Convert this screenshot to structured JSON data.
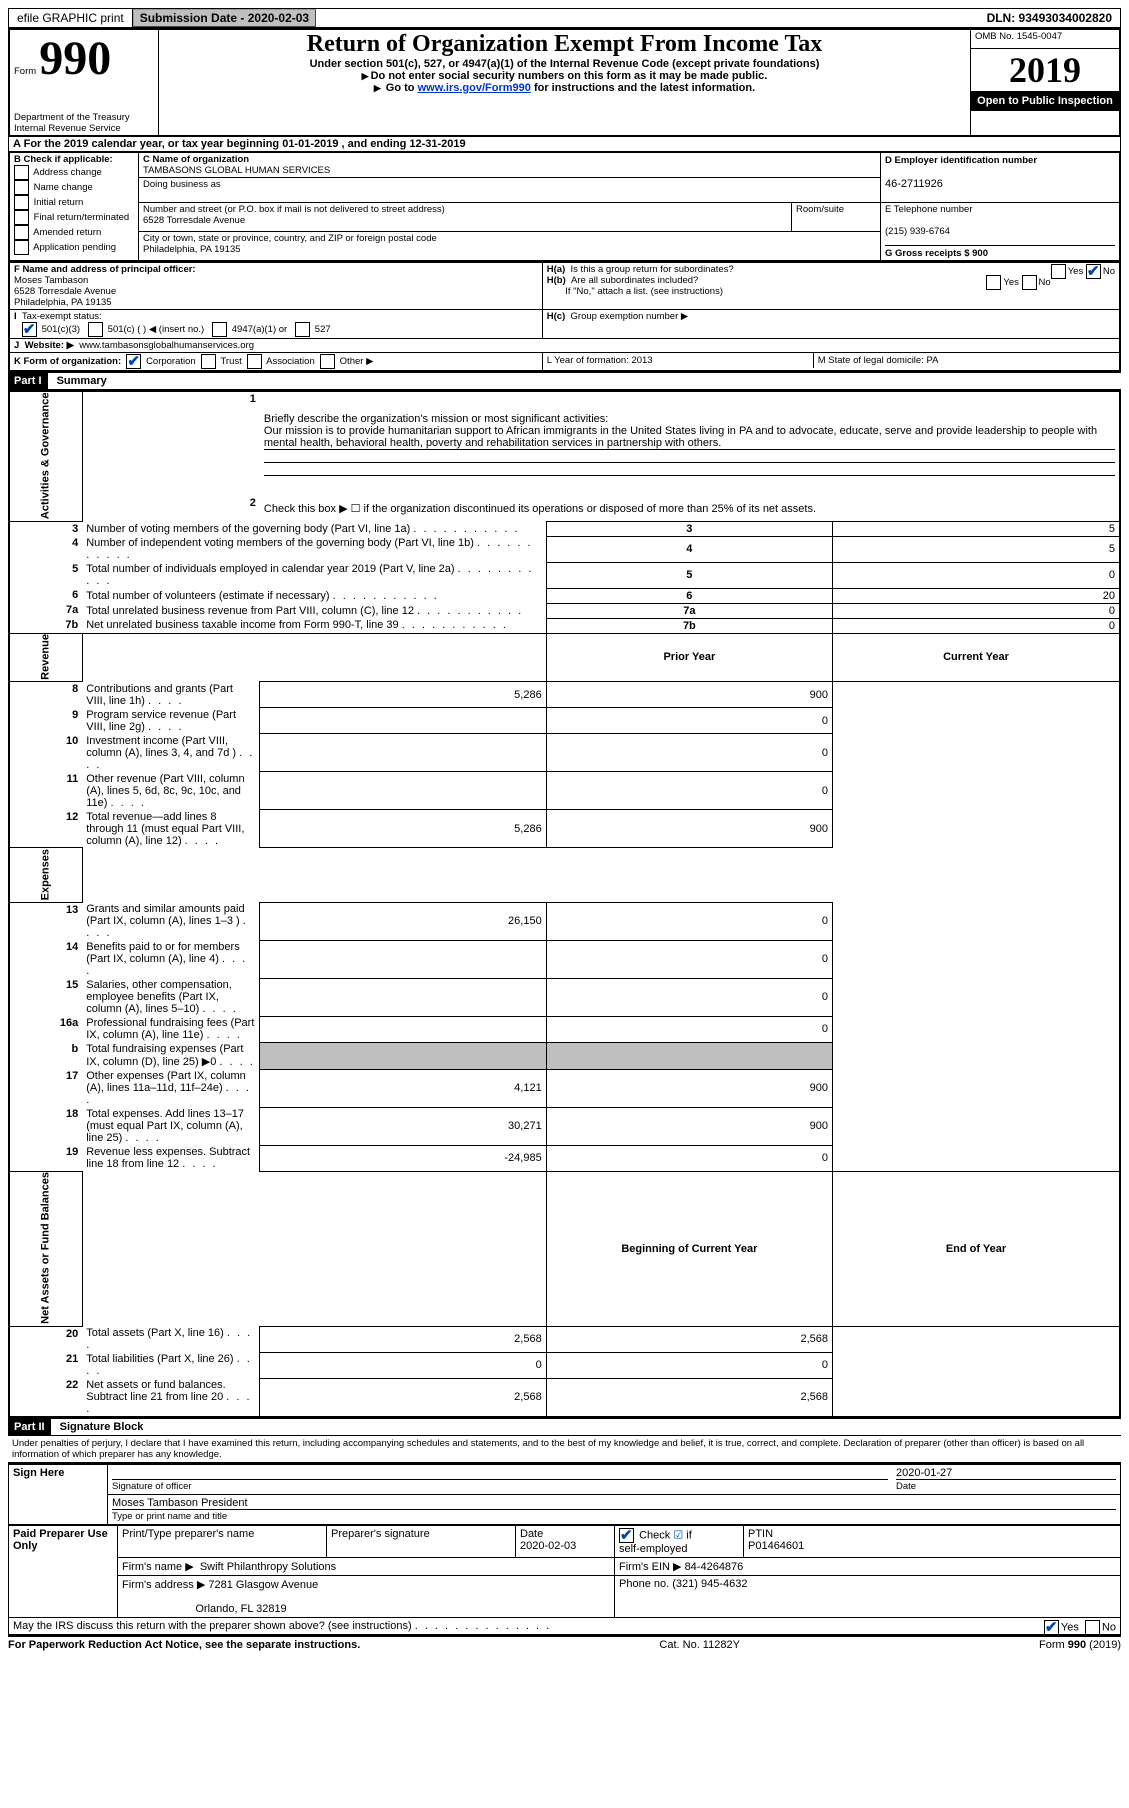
{
  "top": {
    "efile": "efile GRAPHIC print",
    "submission_label": "Submission Date - 2020-02-03",
    "dln": "DLN: 93493034002820"
  },
  "header": {
    "form_label": "Form",
    "form_number": "990",
    "dept1": "Department of the Treasury",
    "dept2": "Internal Revenue Service",
    "title": "Return of Organization Exempt From Income Tax",
    "sub1": "Under section 501(c), 527, or 4947(a)(1) of the Internal Revenue Code (except private foundations)",
    "sub2": "Do not enter social security numbers on this form as it may be made public.",
    "sub3_pre": "Go to ",
    "sub3_link": "www.irs.gov/Form990",
    "sub3_post": " for instructions and the latest information.",
    "omb": "OMB No. 1545-0047",
    "year": "2019",
    "public": "Open to Public Inspection"
  },
  "A_line": "For the 2019 calendar year, or tax year beginning 01-01-2019    , and ending 12-31-2019",
  "B": {
    "title": "B Check if applicable:",
    "items": [
      "Address change",
      "Name change",
      "Initial return",
      "Final return/terminated",
      "Amended return",
      "Application pending"
    ]
  },
  "C": {
    "name_label": "C Name of organization",
    "name": "TAMBASONS GLOBAL HUMAN SERVICES",
    "dba_label": "Doing business as",
    "street_label": "Number and street (or P.O. box if mail is not delivered to street address)",
    "room_label": "Room/suite",
    "street": "6528 Torresdale Avenue",
    "city_label": "City or town, state or province, country, and ZIP or foreign postal code",
    "city": "Philadelphia, PA  19135"
  },
  "D": {
    "label": "D Employer identification number",
    "value": "46-2711926"
  },
  "E": {
    "label": "E Telephone number",
    "value": "(215) 939-6764"
  },
  "G": {
    "label": "G Gross receipts $ 900"
  },
  "F": {
    "label": "F  Name and address of principal officer:",
    "name": "Moses Tambason",
    "street": "6528 Torresdale Avenue",
    "city": "Philadelphia, PA  19135"
  },
  "H": {
    "a": "Is this a group return for subordinates?",
    "b": "Are all subordinates included?",
    "b_note": "If \"No,\" attach a list. (see instructions)",
    "c": "Group exemption number ▶"
  },
  "I": {
    "label": "Tax-exempt status:",
    "opts": [
      "501(c)(3)",
      "501(c) (  ) ◀ (insert no.)",
      "4947(a)(1) or",
      "527"
    ]
  },
  "J": {
    "label": "Website: ▶",
    "value": "www.tambasonsglobalhumanservices.org"
  },
  "K": {
    "label": "K Form of organization:",
    "opts": [
      "Corporation",
      "Trust",
      "Association",
      "Other ▶"
    ]
  },
  "L": {
    "label": "L Year of formation: 2013"
  },
  "M": {
    "label": "M State of legal domicile: PA"
  },
  "part1": {
    "header": "Part I",
    "title": "Summary",
    "mission_label": "Briefly describe the organization's mission or most significant activities:",
    "mission": "Our mission is to provide humanitarian support to African immigrants in the United States living in PA and to advocate, educate, serve and provide leadership to people with mental health, behavioral health, poverty and rehabilitation services in partnership with others.",
    "line2": "Check this box ▶ ☐  if the organization discontinued its operations or disposed of more than 25% of its net assets.",
    "governance": [
      {
        "n": "3",
        "t": "Number of voting members of the governing body (Part VI, line 1a)",
        "v": "5"
      },
      {
        "n": "4",
        "t": "Number of independent voting members of the governing body (Part VI, line 1b)",
        "v": "5"
      },
      {
        "n": "5",
        "t": "Total number of individuals employed in calendar year 2019 (Part V, line 2a)",
        "v": "0"
      },
      {
        "n": "6",
        "t": "Total number of volunteers (estimate if necessary)",
        "v": "20"
      },
      {
        "n": "7a",
        "t": "Total unrelated business revenue from Part VIII, column (C), line 12",
        "v": "0"
      },
      {
        "n": "7b",
        "t": "Net unrelated business taxable income from Form 990-T, line 39",
        "v": "0"
      }
    ],
    "col_prior": "Prior Year",
    "col_current": "Current Year",
    "revenue": [
      {
        "n": "8",
        "t": "Contributions and grants (Part VIII, line 1h)",
        "p": "5,286",
        "c": "900"
      },
      {
        "n": "9",
        "t": "Program service revenue (Part VIII, line 2g)",
        "p": "",
        "c": "0"
      },
      {
        "n": "10",
        "t": "Investment income (Part VIII, column (A), lines 3, 4, and 7d )",
        "p": "",
        "c": "0"
      },
      {
        "n": "11",
        "t": "Other revenue (Part VIII, column (A), lines 5, 6d, 8c, 9c, 10c, and 11e)",
        "p": "",
        "c": "0"
      },
      {
        "n": "12",
        "t": "Total revenue—add lines 8 through 11 (must equal Part VIII, column (A), line 12)",
        "p": "5,286",
        "c": "900"
      }
    ],
    "expenses": [
      {
        "n": "13",
        "t": "Grants and similar amounts paid (Part IX, column (A), lines 1–3 )",
        "p": "26,150",
        "c": "0"
      },
      {
        "n": "14",
        "t": "Benefits paid to or for members (Part IX, column (A), line 4)",
        "p": "",
        "c": "0"
      },
      {
        "n": "15",
        "t": "Salaries, other compensation, employee benefits (Part IX, column (A), lines 5–10)",
        "p": "",
        "c": "0"
      },
      {
        "n": "16a",
        "t": "Professional fundraising fees (Part IX, column (A), line 11e)",
        "p": "",
        "c": "0"
      },
      {
        "n": "b",
        "t": "Total fundraising expenses (Part IX, column (D), line 25) ▶0",
        "p": "GREY",
        "c": "GREY"
      },
      {
        "n": "17",
        "t": "Other expenses (Part IX, column (A), lines 11a–11d, 11f–24e)",
        "p": "4,121",
        "c": "900"
      },
      {
        "n": "18",
        "t": "Total expenses. Add lines 13–17 (must equal Part IX, column (A), line 25)",
        "p": "30,271",
        "c": "900"
      },
      {
        "n": "19",
        "t": "Revenue less expenses. Subtract line 18 from line 12",
        "p": "-24,985",
        "c": "0"
      }
    ],
    "col_begin": "Beginning of Current Year",
    "col_end": "End of Year",
    "netassets": [
      {
        "n": "20",
        "t": "Total assets (Part X, line 16)",
        "p": "2,568",
        "c": "2,568"
      },
      {
        "n": "21",
        "t": "Total liabilities (Part X, line 26)",
        "p": "0",
        "c": "0"
      },
      {
        "n": "22",
        "t": "Net assets or fund balances. Subtract line 21 from line 20",
        "p": "2,568",
        "c": "2,568"
      }
    ]
  },
  "part2": {
    "header": "Part II",
    "title": "Signature Block",
    "jurat": "Under penalties of perjury, I declare that I have examined this return, including accompanying schedules and statements, and to the best of my knowledge and belief, it is true, correct, and complete. Declaration of preparer (other than officer) is based on all information of which preparer has any knowledge.",
    "sign_here": "Sign Here",
    "sig_officer": "Signature of officer",
    "sig_date": "2020-01-27",
    "date_label": "Date",
    "officer_name": "Moses Tambason  President",
    "officer_type": "Type or print name and title",
    "paid": "Paid Preparer Use Only",
    "prep_name_label": "Print/Type preparer's name",
    "prep_sig_label": "Preparer's signature",
    "prep_date_label": "Date",
    "prep_date": "2020-02-03",
    "check_self": "Check ☑ if self-employed",
    "ptin_label": "PTIN",
    "ptin": "P01464601",
    "firm_name_label": "Firm's name    ▶",
    "firm_name": "Swift Philanthropy Solutions",
    "firm_ein_label": "Firm's EIN ▶",
    "firm_ein": "84-4264876",
    "firm_addr_label": "Firm's address ▶",
    "firm_addr1": "7281 Glasgow Avenue",
    "firm_addr2": "Orlando, FL  32819",
    "firm_phone_label": "Phone no.",
    "firm_phone": "(321) 945-4632",
    "discuss": "May the IRS discuss this return with the preparer shown above? (see instructions)"
  },
  "footer": {
    "left": "For Paperwork Reduction Act Notice, see the separate instructions.",
    "mid": "Cat. No. 11282Y",
    "right": "Form 990 (2019)"
  },
  "labels": {
    "gov": "Activities & Governance",
    "rev": "Revenue",
    "exp": "Expenses",
    "net": "Net Assets or Fund Balances"
  }
}
